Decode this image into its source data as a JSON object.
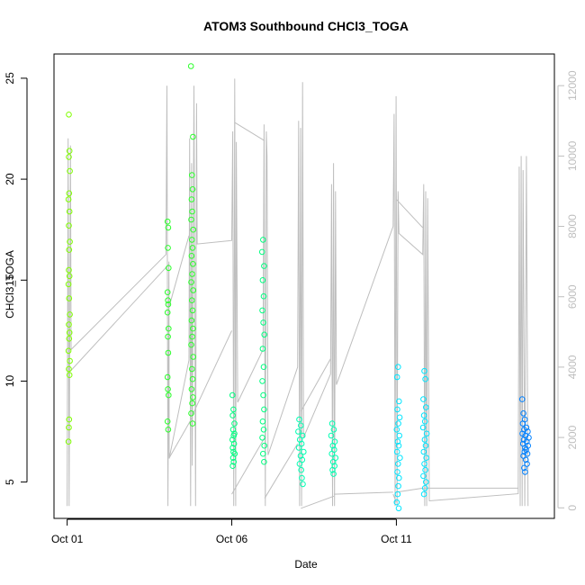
{
  "chart_data": {
    "type": "scatter",
    "title": "ATOM3 Southbound CHCl3_TOGA",
    "xlabel": "Date",
    "ylabel": "CHCl3_TOGA",
    "x_ticks": [
      {
        "day": 1,
        "label": "Oct 01"
      },
      {
        "day": 6,
        "label": "Oct 06"
      },
      {
        "day": 11,
        "label": "Oct 11"
      }
    ],
    "xlim": [
      0.6,
      15.8
    ],
    "ylim": [
      3.2,
      26.2
    ],
    "y_ticks": [
      5,
      10,
      15,
      20,
      25
    ],
    "right_axis": {
      "label": "",
      "ylim": [
        -300,
        12900
      ],
      "ticks": [
        0,
        2000,
        4000,
        6000,
        8000,
        10000,
        12000
      ],
      "color": "#bebebe"
    },
    "colors": {
      "lime": "#80ff00",
      "green": "#2bff2b",
      "spring": "#00ff80",
      "seafoam": "#00ffb2",
      "cyan": "#00e5ff",
      "azure": "#0080ff",
      "altitude_line": "#bebebe"
    },
    "series": [
      {
        "color": "#80ff00",
        "x_range": [
          1.0,
          1.1
        ],
        "points": [
          [
            1.05,
            23.2
          ],
          [
            1.07,
            21.4
          ],
          [
            1.05,
            21.1
          ],
          [
            1.08,
            20.4
          ],
          [
            1.06,
            19.3
          ],
          [
            1.04,
            19.0
          ],
          [
            1.07,
            18.4
          ],
          [
            1.05,
            17.7
          ],
          [
            1.08,
            16.9
          ],
          [
            1.06,
            16.5
          ],
          [
            1.05,
            15.5
          ],
          [
            1.07,
            15.2
          ],
          [
            1.04,
            14.8
          ],
          [
            1.06,
            14.1
          ],
          [
            1.08,
            13.3
          ],
          [
            1.05,
            12.8
          ],
          [
            1.07,
            12.4
          ],
          [
            1.06,
            12.1
          ],
          [
            1.04,
            11.5
          ],
          [
            1.08,
            11.0
          ],
          [
            1.05,
            10.6
          ],
          [
            1.07,
            10.3
          ],
          [
            1.06,
            8.1
          ],
          [
            1.05,
            7.7
          ],
          [
            1.04,
            7.0
          ]
        ]
      },
      {
        "color": "#2bff2b",
        "x_range": [
          4.0,
          4.9
        ],
        "points": [
          [
            4.05,
            17.9
          ],
          [
            4.07,
            17.6
          ],
          [
            4.06,
            16.6
          ],
          [
            4.08,
            15.6
          ],
          [
            4.05,
            14.4
          ],
          [
            4.06,
            14.0
          ],
          [
            4.07,
            13.8
          ],
          [
            4.05,
            13.4
          ],
          [
            4.08,
            12.6
          ],
          [
            4.06,
            12.2
          ],
          [
            4.07,
            11.4
          ],
          [
            4.05,
            10.2
          ],
          [
            4.06,
            9.6
          ],
          [
            4.08,
            9.3
          ],
          [
            4.05,
            8.0
          ],
          [
            4.07,
            7.6
          ],
          [
            4.76,
            25.6
          ],
          [
            4.82,
            22.1
          ],
          [
            4.79,
            20.2
          ],
          [
            4.81,
            19.5
          ],
          [
            4.78,
            19.0
          ],
          [
            4.8,
            18.4
          ],
          [
            4.77,
            18.0
          ],
          [
            4.83,
            17.5
          ],
          [
            4.79,
            17.0
          ],
          [
            4.81,
            16.6
          ],
          [
            4.78,
            16.2
          ],
          [
            4.82,
            15.8
          ],
          [
            4.8,
            15.3
          ],
          [
            4.77,
            14.9
          ],
          [
            4.83,
            14.5
          ],
          [
            4.79,
            14.0
          ],
          [
            4.81,
            13.5
          ],
          [
            4.78,
            13.0
          ],
          [
            4.82,
            12.6
          ],
          [
            4.8,
            12.2
          ],
          [
            4.77,
            11.8
          ],
          [
            4.83,
            11.2
          ],
          [
            4.79,
            10.6
          ],
          [
            4.81,
            10.1
          ],
          [
            4.78,
            9.6
          ],
          [
            4.82,
            9.2
          ],
          [
            4.8,
            8.9
          ],
          [
            4.77,
            8.4
          ],
          [
            4.81,
            7.9
          ]
        ]
      },
      {
        "color": "#00ff80",
        "x_range": [
          6.0,
          7.0
        ],
        "points": [
          [
            6.02,
            9.3
          ],
          [
            6.05,
            8.6
          ],
          [
            6.03,
            8.3
          ],
          [
            6.08,
            7.9
          ],
          [
            6.04,
            7.6
          ],
          [
            6.06,
            7.3
          ],
          [
            6.02,
            7.1
          ],
          [
            6.07,
            6.9
          ],
          [
            6.03,
            6.7
          ],
          [
            6.05,
            6.5
          ],
          [
            6.09,
            6.4
          ],
          [
            6.04,
            6.2
          ],
          [
            6.06,
            6.0
          ],
          [
            6.03,
            5.8
          ],
          [
            6.08,
            7.4
          ],
          [
            6.95,
            17.0
          ],
          [
            6.92,
            16.4
          ],
          [
            6.98,
            15.7
          ],
          [
            6.94,
            15.0
          ],
          [
            6.97,
            14.2
          ],
          [
            6.93,
            13.5
          ],
          [
            6.96,
            12.9
          ],
          [
            6.99,
            12.3
          ],
          [
            6.94,
            11.6
          ],
          [
            6.97,
            10.7
          ],
          [
            6.93,
            10.0
          ],
          [
            6.96,
            9.3
          ],
          [
            6.98,
            8.6
          ],
          [
            6.94,
            8.0
          ],
          [
            6.97,
            7.6
          ],
          [
            6.93,
            7.2
          ],
          [
            6.99,
            6.8
          ],
          [
            6.95,
            6.4
          ],
          [
            6.98,
            6.0
          ]
        ]
      },
      {
        "color": "#00ffb2",
        "x_range": [
          8.0,
          9.2
        ],
        "points": [
          [
            8.05,
            8.1
          ],
          [
            8.1,
            7.8
          ],
          [
            8.02,
            7.5
          ],
          [
            8.15,
            7.3
          ],
          [
            8.07,
            7.1
          ],
          [
            8.12,
            6.9
          ],
          [
            8.04,
            6.7
          ],
          [
            8.18,
            6.5
          ],
          [
            8.09,
            6.3
          ],
          [
            8.14,
            6.1
          ],
          [
            8.06,
            5.9
          ],
          [
            8.11,
            5.6
          ],
          [
            8.13,
            5.2
          ],
          [
            8.16,
            4.9
          ],
          [
            9.05,
            7.9
          ],
          [
            9.1,
            7.6
          ],
          [
            9.02,
            7.3
          ],
          [
            9.13,
            7.0
          ],
          [
            9.07,
            6.8
          ],
          [
            9.11,
            6.6
          ],
          [
            9.04,
            6.4
          ],
          [
            9.15,
            6.2
          ],
          [
            9.08,
            6.0
          ],
          [
            9.12,
            5.8
          ],
          [
            9.06,
            5.6
          ],
          [
            9.09,
            5.4
          ]
        ]
      },
      {
        "color": "#00e5ff",
        "x_range": [
          10.9,
          12.0
        ],
        "points": [
          [
            11.05,
            10.7
          ],
          [
            11.02,
            10.2
          ],
          [
            11.08,
            9.0
          ],
          [
            11.03,
            8.6
          ],
          [
            11.1,
            8.2
          ],
          [
            11.06,
            7.9
          ],
          [
            11.01,
            7.6
          ],
          [
            11.09,
            7.3
          ],
          [
            11.04,
            7.0
          ],
          [
            11.07,
            6.8
          ],
          [
            11.02,
            6.5
          ],
          [
            11.11,
            6.2
          ],
          [
            11.05,
            5.9
          ],
          [
            11.03,
            5.5
          ],
          [
            11.08,
            5.2
          ],
          [
            11.06,
            4.8
          ],
          [
            11.04,
            4.4
          ],
          [
            11.01,
            4.0
          ],
          [
            11.07,
            3.7
          ],
          [
            11.85,
            10.5
          ],
          [
            11.88,
            10.1
          ],
          [
            11.82,
            9.1
          ],
          [
            11.9,
            8.7
          ],
          [
            11.84,
            8.3
          ],
          [
            11.87,
            8.0
          ],
          [
            11.81,
            7.7
          ],
          [
            11.92,
            7.4
          ],
          [
            11.86,
            7.1
          ],
          [
            11.89,
            6.8
          ],
          [
            11.83,
            6.5
          ],
          [
            11.91,
            6.2
          ],
          [
            11.85,
            5.9
          ],
          [
            11.88,
            5.6
          ],
          [
            11.82,
            5.3
          ],
          [
            11.9,
            5.0
          ],
          [
            11.87,
            4.7
          ],
          [
            11.84,
            4.4
          ]
        ]
      },
      {
        "color": "#0080ff",
        "x_range": [
          14.7,
          15.1
        ],
        "points": [
          [
            14.82,
            9.1
          ],
          [
            14.86,
            8.4
          ],
          [
            14.9,
            8.1
          ],
          [
            14.84,
            7.9
          ],
          [
            14.95,
            7.7
          ],
          [
            14.88,
            7.6
          ],
          [
            14.99,
            7.5
          ],
          [
            14.83,
            7.4
          ],
          [
            14.92,
            7.3
          ],
          [
            15.02,
            7.2
          ],
          [
            14.87,
            7.1
          ],
          [
            14.96,
            7.0
          ],
          [
            14.85,
            6.9
          ],
          [
            15.0,
            6.8
          ],
          [
            14.91,
            6.7
          ],
          [
            14.94,
            6.6
          ],
          [
            14.89,
            6.5
          ],
          [
            14.98,
            6.4
          ],
          [
            14.86,
            6.3
          ],
          [
            14.93,
            6.1
          ],
          [
            14.97,
            5.9
          ],
          [
            14.88,
            5.7
          ],
          [
            14.91,
            5.5
          ]
        ]
      }
    ],
    "altitude_trace": [
      [
        1.0,
        50
      ],
      [
        1.03,
        10500
      ],
      [
        1.06,
        50
      ],
      [
        1.1,
        10300
      ],
      [
        1.12,
        4500
      ],
      [
        4.0,
        7200
      ],
      [
        4.03,
        12000
      ],
      [
        4.06,
        50
      ],
      [
        4.09,
        7000
      ],
      [
        4.1,
        1400
      ],
      [
        4.7,
        4200
      ],
      [
        4.72,
        10500
      ],
      [
        4.75,
        50
      ],
      [
        4.78,
        9800
      ],
      [
        4.8,
        1200
      ],
      [
        4.85,
        12000
      ],
      [
        4.9,
        50
      ],
      [
        4.93,
        11500
      ],
      [
        4.95,
        7500
      ],
      [
        6.0,
        7600
      ],
      [
        6.03,
        10700
      ],
      [
        6.06,
        50
      ],
      [
        6.09,
        12200
      ],
      [
        6.12,
        50
      ],
      [
        6.14,
        10400
      ],
      [
        6.18,
        3000
      ],
      [
        6.95,
        4500
      ],
      [
        6.98,
        10900
      ],
      [
        7.02,
        50
      ],
      [
        7.05,
        10700
      ],
      [
        7.07,
        10000
      ],
      [
        7.1,
        1500
      ],
      [
        8.0,
        4000
      ],
      [
        8.03,
        11000
      ],
      [
        8.06,
        50
      ],
      [
        8.09,
        10800
      ],
      [
        8.12,
        50
      ],
      [
        8.15,
        12100
      ],
      [
        8.18,
        2000
      ],
      [
        9.0,
        3800
      ],
      [
        9.03,
        9200
      ],
      [
        9.06,
        50
      ],
      [
        9.09,
        9800
      ],
      [
        9.12,
        50
      ],
      [
        9.15,
        9000
      ],
      [
        9.18,
        3500
      ],
      [
        10.9,
        8000
      ],
      [
        10.93,
        11200
      ],
      [
        10.96,
        50
      ],
      [
        10.99,
        11700
      ],
      [
        11.02,
        50
      ],
      [
        11.05,
        9000
      ],
      [
        11.08,
        7800
      ],
      [
        11.8,
        7200
      ],
      [
        11.83,
        9200
      ],
      [
        11.86,
        50
      ],
      [
        11.89,
        9000
      ],
      [
        11.92,
        50
      ],
      [
        11.95,
        8800
      ],
      [
        12.0,
        200
      ],
      [
        14.7,
        400
      ],
      [
        14.73,
        9700
      ],
      [
        14.76,
        50
      ],
      [
        14.79,
        10000
      ],
      [
        14.82,
        50
      ],
      [
        14.85,
        9600
      ],
      [
        14.9,
        50
      ],
      [
        14.95,
        10000
      ],
      [
        15.0,
        50
      ]
    ],
    "connector_segments": [
      [
        [
          1.1,
          10.5
        ],
        [
          4.1,
          15.8
        ]
      ],
      [
        [
          4.1,
          13.7
        ],
        [
          4.7,
          17.2
        ]
      ],
      [
        [
          4.1,
          6.2
        ],
        [
          4.8,
          8.2
        ]
      ],
      [
        [
          4.8,
          8.3
        ],
        [
          6.0,
          12.5
        ]
      ],
      [
        [
          6.1,
          22.8
        ],
        [
          7.0,
          21.9
        ]
      ],
      [
        [
          6.0,
          4.4
        ],
        [
          7.0,
          7.2
        ]
      ],
      [
        [
          7.0,
          4.2
        ],
        [
          8.0,
          6.9
        ]
      ],
      [
        [
          8.1,
          8.5
        ],
        [
          9.0,
          11.1
        ]
      ],
      [
        [
          8.1,
          3.7
        ],
        [
          9.1,
          4.3
        ]
      ],
      [
        [
          9.1,
          4.4
        ],
        [
          10.9,
          4.5
        ]
      ],
      [
        [
          11.0,
          19.0
        ],
        [
          11.8,
          17.6
        ]
      ],
      [
        [
          11.0,
          4.5
        ],
        [
          11.8,
          4.7
        ]
      ],
      [
        [
          11.8,
          4.7
        ],
        [
          14.7,
          4.7
        ]
      ],
      [
        [
          10.9,
          4.4
        ],
        [
          11.0,
          4.0
        ]
      ]
    ]
  }
}
